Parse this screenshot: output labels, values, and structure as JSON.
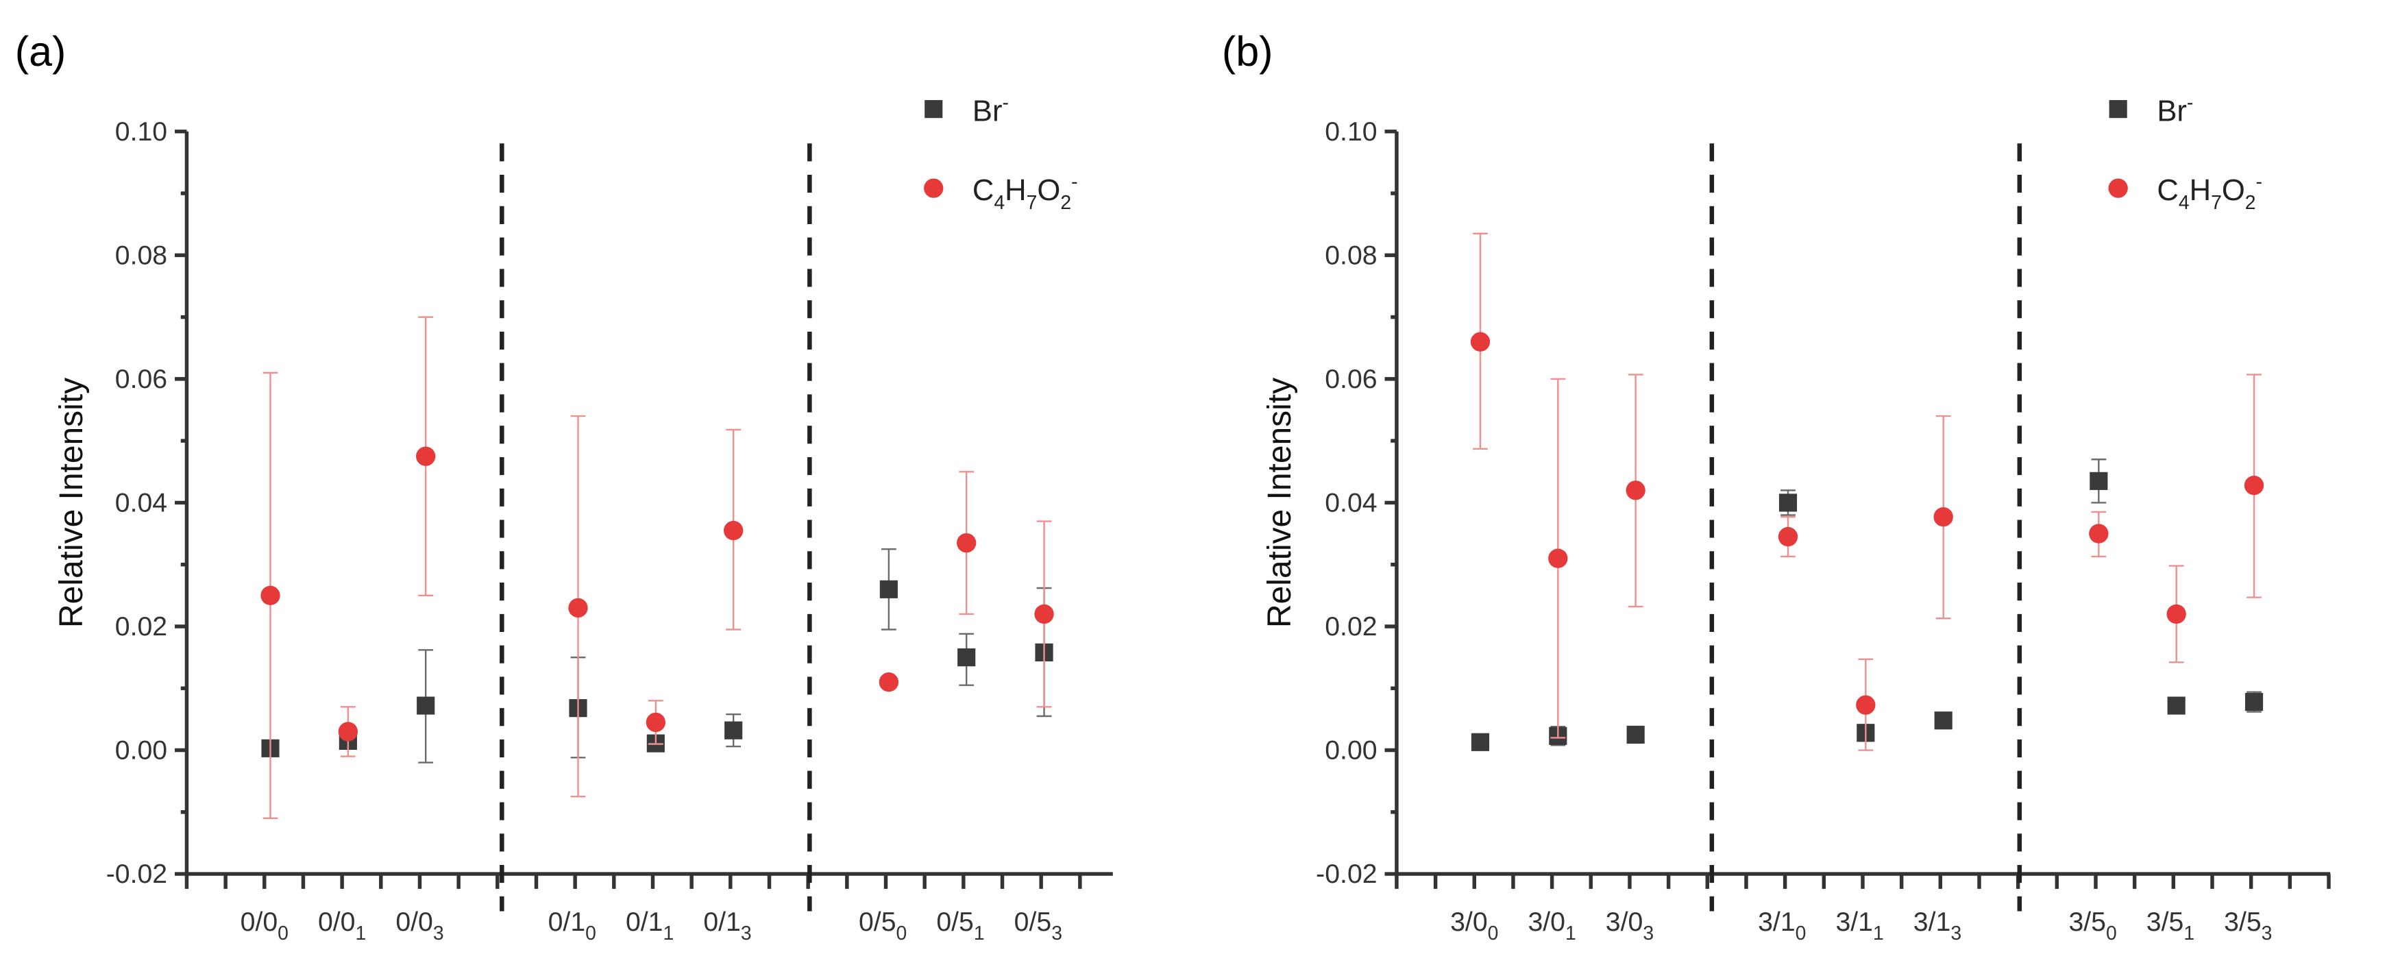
{
  "colors": {
    "br": "#3a3a3a",
    "c4": "#e63a3a",
    "br_err": "#6b6b6b",
    "c4_err": "#f08f8f"
  },
  "chart_data": [
    {
      "type": "scatter",
      "panel_label": "(a)",
      "ylabel": "Relative Intensity",
      "ylim": [
        -0.02,
        0.1
      ],
      "yticks": [
        "-0.02",
        "0.00",
        "0.02",
        "0.04",
        "0.06",
        "0.08",
        "0.10"
      ],
      "categories": [
        {
          "main": "0/0",
          "sub": "0"
        },
        {
          "main": "0/0",
          "sub": "1"
        },
        {
          "main": "0/0",
          "sub": "3"
        },
        {
          "main": "0/1",
          "sub": "0"
        },
        {
          "main": "0/1",
          "sub": "1"
        },
        {
          "main": "0/1",
          "sub": "3"
        },
        {
          "main": "0/5",
          "sub": "0"
        },
        {
          "main": "0/5",
          "sub": "1"
        },
        {
          "main": "0/5",
          "sub": "3"
        }
      ],
      "groups_dividers_after": [
        3,
        6
      ],
      "legend": [
        {
          "main": "Br",
          "sup": "-"
        },
        {
          "main": "C4H7O2",
          "sup": "-",
          "parts": [
            [
              "C",
              ""
            ],
            [
              "4",
              "sub"
            ],
            [
              "H",
              ""
            ],
            [
              "7",
              "sub"
            ],
            [
              "O",
              ""
            ],
            [
              "2",
              "sub"
            ]
          ]
        }
      ],
      "series": [
        {
          "name": "Br-",
          "values": [
            0.0003,
            0.0015,
            0.0072,
            0.0068,
            0.0011,
            0.0032,
            0.026,
            0.015,
            0.0158
          ],
          "err_low": [
            0.0003,
            0.0015,
            -0.002,
            -0.0012,
            0.0006,
            0.0006,
            0.0195,
            0.0105,
            0.0055
          ],
          "err_high": [
            0.0003,
            0.0015,
            0.0162,
            0.015,
            0.0016,
            0.0058,
            0.0325,
            0.0188,
            0.0262
          ]
        },
        {
          "name": "C4H7O2-",
          "values": [
            0.025,
            0.003,
            0.0475,
            0.023,
            0.0045,
            0.0355,
            0.011,
            0.0335,
            0.022
          ],
          "err_low": [
            -0.011,
            -0.001,
            0.025,
            -0.0075,
            0.001,
            0.0195,
            0.011,
            0.022,
            0.007
          ],
          "err_high": [
            0.061,
            0.007,
            0.07,
            0.054,
            0.008,
            0.0518,
            0.011,
            0.045,
            0.037
          ]
        }
      ]
    },
    {
      "type": "scatter",
      "panel_label": "(b)",
      "ylabel": "Relative Intensity",
      "ylim": [
        -0.02,
        0.1
      ],
      "yticks": [
        "-0.02",
        "0.00",
        "0.02",
        "0.04",
        "0.06",
        "0.08",
        "0.10"
      ],
      "categories": [
        {
          "main": "3/0",
          "sub": "0"
        },
        {
          "main": "3/0",
          "sub": "1"
        },
        {
          "main": "3/0",
          "sub": "3"
        },
        {
          "main": "3/1",
          "sub": "0"
        },
        {
          "main": "3/1",
          "sub": "1"
        },
        {
          "main": "3/1",
          "sub": "3"
        },
        {
          "main": "3/5",
          "sub": "0"
        },
        {
          "main": "3/5",
          "sub": "1"
        },
        {
          "main": "3/5",
          "sub": "3"
        }
      ],
      "groups_dividers_after": [
        3,
        6
      ],
      "legend": [
        {
          "main": "Br",
          "sup": "-"
        },
        {
          "main": "C4H7O2",
          "sup": "-",
          "parts": [
            [
              "C",
              ""
            ],
            [
              "4",
              "sub"
            ],
            [
              "H",
              ""
            ],
            [
              "7",
              "sub"
            ],
            [
              "O",
              ""
            ],
            [
              "2",
              "sub"
            ]
          ]
        }
      ],
      "series": [
        {
          "name": "Br-",
          "values": [
            0.0013,
            0.0023,
            0.0025,
            0.04,
            0.0028,
            0.0048,
            0.0435,
            0.0072,
            0.0078
          ],
          "err_low": [
            0.0013,
            0.0008,
            0.0025,
            0.038,
            0.0015,
            0.0035,
            0.04,
            0.0072,
            0.0062
          ],
          "err_high": [
            0.0013,
            0.0038,
            0.0025,
            0.042,
            0.0041,
            0.006,
            0.047,
            0.0072,
            0.0094
          ]
        },
        {
          "name": "C4H7O2-",
          "values": [
            0.066,
            0.031,
            0.042,
            0.0345,
            0.0073,
            0.0377,
            0.035,
            0.022,
            0.0428
          ],
          "err_low": [
            0.0487,
            0.002,
            0.0232,
            0.0313,
            0.0,
            0.0213,
            0.0313,
            0.0142,
            0.0247
          ],
          "err_high": [
            0.0835,
            0.06,
            0.0607,
            0.0377,
            0.0147,
            0.054,
            0.0385,
            0.0298,
            0.0607
          ]
        }
      ]
    }
  ]
}
